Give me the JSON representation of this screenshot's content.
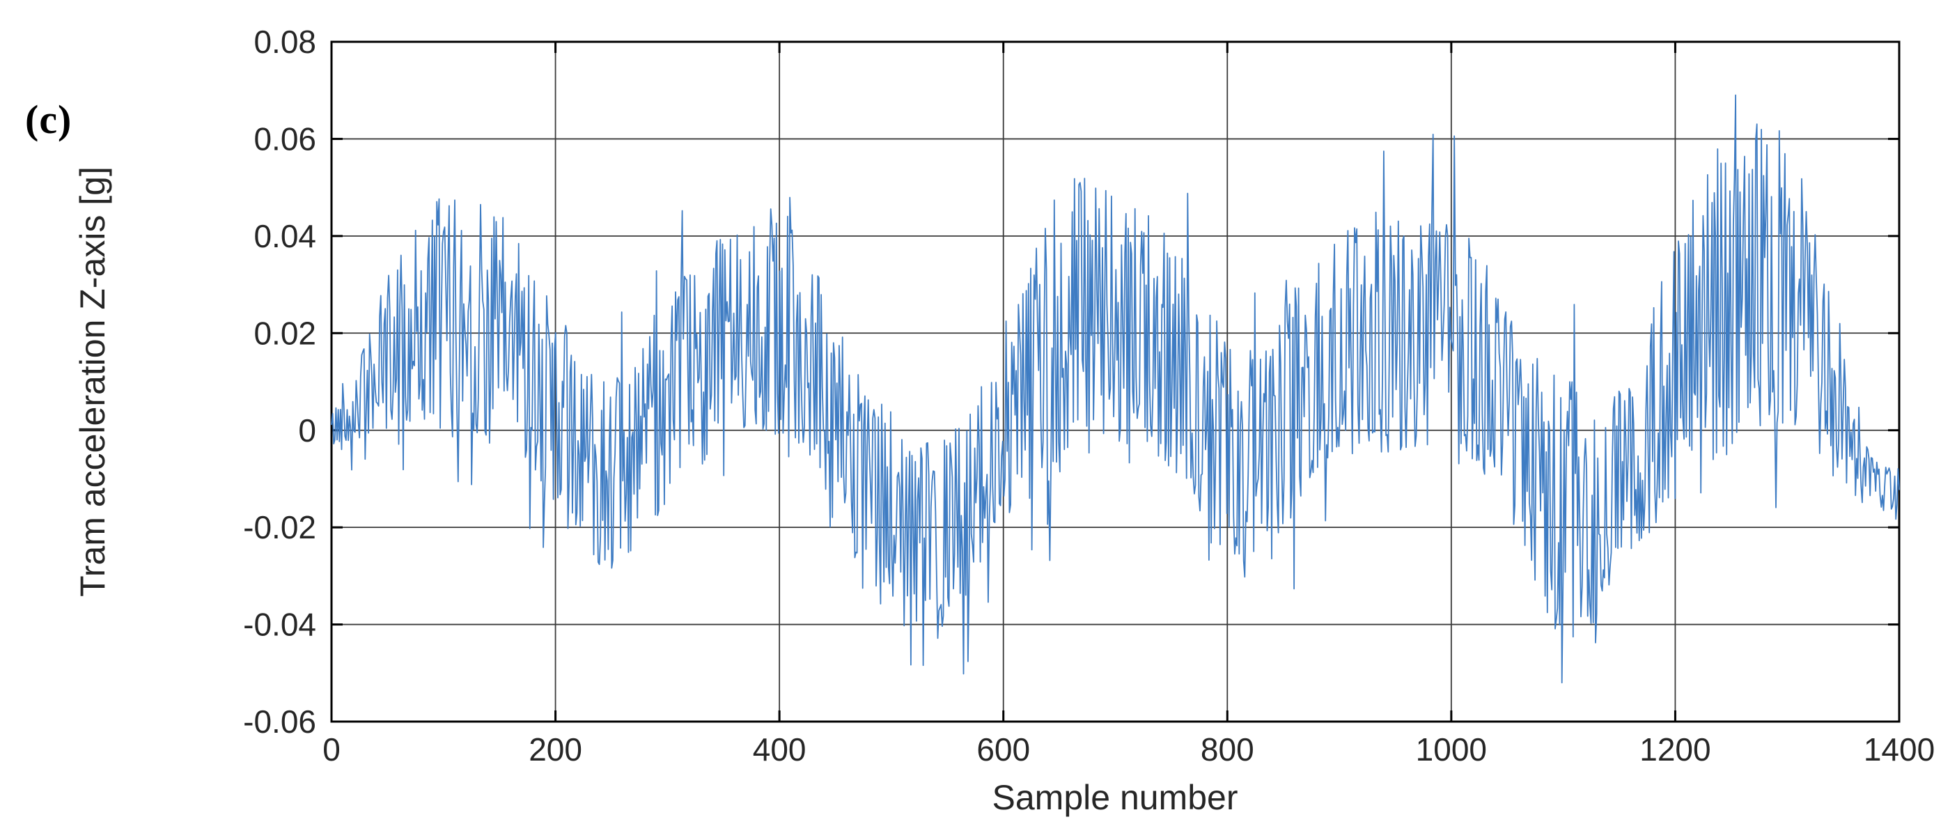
{
  "figure": {
    "panel_label": "(c)"
  },
  "chart_data": {
    "type": "line",
    "title": "",
    "xlabel": "Sample number",
    "ylabel": "Tram acceleration Z-axis [g]",
    "xlim": [
      0,
      1400
    ],
    "ylim": [
      -0.06,
      0.08
    ],
    "xticks": [
      0,
      200,
      400,
      600,
      800,
      1000,
      1200,
      1400
    ],
    "xtick_labels": [
      "0",
      "200",
      "400",
      "600",
      "800",
      "1000",
      "1200",
      "1400"
    ],
    "yticks": [
      -0.06,
      -0.04,
      -0.02,
      0,
      0.02,
      0.04,
      0.06,
      0.08
    ],
    "ytick_labels": [
      "-0.06",
      "-0.04",
      "-0.02",
      "0",
      "0.02",
      "0.04",
      "0.06",
      "0.08"
    ],
    "grid": true,
    "legend": null,
    "colors": {
      "line": "#3e7cc3",
      "grid": "#3a3a3a",
      "box": "#000000",
      "tick_text": "#262626"
    },
    "series": [
      {
        "name": "Tram acceleration Z-axis [g]",
        "n_points": 1400,
        "value_range": [
          -0.052,
          0.071
        ],
        "seed": 42,
        "mean_envelope": [
          [
            0,
            0
          ],
          [
            15,
            0.003
          ],
          [
            50,
            0.015
          ],
          [
            80,
            0.022
          ],
          [
            120,
            0.024
          ],
          [
            170,
            0.018
          ],
          [
            195,
            0.004
          ],
          [
            230,
            -0.006
          ],
          [
            265,
            -0.01
          ],
          [
            290,
            0.002
          ],
          [
            330,
            0.015
          ],
          [
            375,
            0.024
          ],
          [
            405,
            0.022
          ],
          [
            435,
            0.012
          ],
          [
            465,
            -0.008
          ],
          [
            500,
            -0.018
          ],
          [
            535,
            -0.024
          ],
          [
            565,
            -0.018
          ],
          [
            595,
            -0.004
          ],
          [
            630,
            0.014
          ],
          [
            660,
            0.024
          ],
          [
            700,
            0.022
          ],
          [
            745,
            0.018
          ],
          [
            775,
            0.006
          ],
          [
            815,
            -0.008
          ],
          [
            840,
            -0.004
          ],
          [
            870,
            0.01
          ],
          [
            910,
            0.018
          ],
          [
            960,
            0.02
          ],
          [
            1000,
            0.022
          ],
          [
            1035,
            0.012
          ],
          [
            1060,
            -0.002
          ],
          [
            1095,
            -0.016
          ],
          [
            1125,
            -0.018
          ],
          [
            1155,
            -0.008
          ],
          [
            1185,
            0.004
          ],
          [
            1215,
            0.016
          ],
          [
            1245,
            0.028
          ],
          [
            1285,
            0.032
          ],
          [
            1315,
            0.026
          ],
          [
            1340,
            0.008
          ],
          [
            1360,
            -0.006
          ],
          [
            1385,
            -0.012
          ],
          [
            1400,
            -0.014
          ]
        ],
        "noise_amplitude": [
          [
            0,
            0.004
          ],
          [
            30,
            0.01
          ],
          [
            70,
            0.024
          ],
          [
            120,
            0.026
          ],
          [
            200,
            0.022
          ],
          [
            260,
            0.02
          ],
          [
            320,
            0.022
          ],
          [
            380,
            0.024
          ],
          [
            440,
            0.022
          ],
          [
            520,
            0.022
          ],
          [
            600,
            0.02
          ],
          [
            655,
            0.032
          ],
          [
            700,
            0.026
          ],
          [
            760,
            0.024
          ],
          [
            830,
            0.024
          ],
          [
            900,
            0.024
          ],
          [
            1000,
            0.024
          ],
          [
            1060,
            0.022
          ],
          [
            1100,
            0.028
          ],
          [
            1160,
            0.02
          ],
          [
            1230,
            0.034
          ],
          [
            1290,
            0.032
          ],
          [
            1330,
            0.022
          ],
          [
            1355,
            0.01
          ],
          [
            1380,
            0.006
          ],
          [
            1400,
            0.005
          ]
        ]
      }
    ]
  }
}
